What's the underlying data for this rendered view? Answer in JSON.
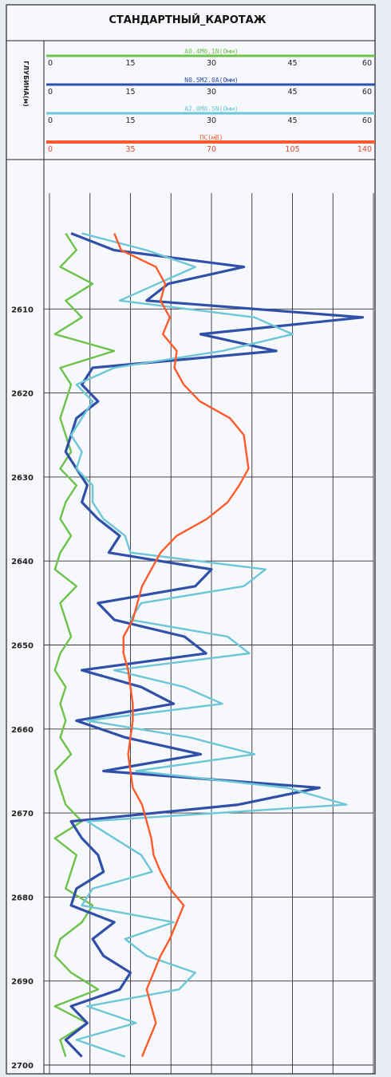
{
  "chart_data": {
    "type": "line",
    "title": "СТАНДАРТНЫЙ_КАРОТАЖ",
    "ylabel": "ГЛУБИНА(м)",
    "y_axis": {
      "ticks": [
        2610,
        2620,
        2630,
        2640,
        2650,
        2660,
        2670,
        2680,
        2690,
        2700
      ],
      "range": [
        2600,
        2700
      ],
      "reversed": true
    },
    "tracks": [
      {
        "name": "A0.4M0.1N(Омм)",
        "color": "#6cc24a",
        "ticks": [
          "0",
          "15",
          "30",
          "45",
          "60"
        ],
        "range": [
          0,
          60
        ]
      },
      {
        "name": "N0.5M2.0A(Омм)",
        "color": "#2f4fa8",
        "ticks": [
          "0",
          "15",
          "30",
          "45",
          "60"
        ],
        "range": [
          0,
          60
        ]
      },
      {
        "name": "A2.0M0.5N(Омм)",
        "color": "#6cc6d8",
        "ticks": [
          "0",
          "15",
          "30",
          "45",
          "60"
        ],
        "range": [
          0,
          60
        ]
      },
      {
        "name": "ПС(мВ)",
        "color": "#ff5a2c",
        "ticks": [
          "0",
          "35",
          "70",
          "105",
          "140"
        ],
        "range": [
          0,
          140
        ]
      }
    ],
    "series": [
      {
        "name": "A0.4M0.1N(Омм)",
        "color": "#6cc24a",
        "depth": [
          2601,
          2603,
          2605,
          2607,
          2609,
          2611,
          2613,
          2615,
          2617,
          2619,
          2621,
          2623,
          2625,
          2627,
          2629,
          2631,
          2633,
          2635,
          2637,
          2639,
          2641,
          2643,
          2645,
          2647,
          2649,
          2651,
          2653,
          2655,
          2657,
          2659,
          2661,
          2663,
          2665,
          2667,
          2669,
          2671,
          2673,
          2675,
          2677,
          2679,
          2681,
          2683,
          2685,
          2687,
          2689,
          2691,
          2693,
          2695,
          2697,
          2699
        ],
        "values": [
          3,
          5,
          2,
          8,
          3,
          6,
          1,
          12,
          2,
          4,
          3,
          2,
          3,
          4,
          2,
          5,
          3,
          2,
          4,
          2,
          1,
          5,
          2,
          3,
          4,
          2,
          1,
          3,
          2,
          3,
          2,
          4,
          1,
          2,
          3,
          6,
          1,
          5,
          4,
          3,
          8,
          6,
          2,
          1,
          4,
          9,
          1,
          7,
          2,
          3
        ]
      },
      {
        "name": "N0.5M2.0A(Омм)",
        "color": "#2f4fa8",
        "depth": [
          2601,
          2603,
          2605,
          2607,
          2609,
          2611,
          2613,
          2615,
          2617,
          2619,
          2621,
          2623,
          2625,
          2627,
          2629,
          2631,
          2633,
          2635,
          2637,
          2639,
          2641,
          2643,
          2645,
          2647,
          2649,
          2651,
          2653,
          2655,
          2657,
          2659,
          2661,
          2663,
          2665,
          2667,
          2669,
          2671,
          2673,
          2675,
          2677,
          2679,
          2681,
          2683,
          2685,
          2687,
          2689,
          2691,
          2693,
          2695,
          2697,
          2699
        ],
        "values": [
          4,
          12,
          36,
          22,
          18,
          58,
          28,
          42,
          8,
          6,
          9,
          5,
          4,
          3,
          5,
          7,
          6,
          9,
          13,
          11,
          30,
          27,
          9,
          12,
          25,
          29,
          6,
          17,
          23,
          5,
          14,
          28,
          10,
          50,
          35,
          4,
          6,
          9,
          10,
          5,
          4,
          12,
          8,
          10,
          15,
          13,
          4,
          7,
          3,
          6
        ]
      },
      {
        "name": "A2.0M0.5N(Омм)",
        "color": "#6cc6d8",
        "depth": [
          2601,
          2603,
          2605,
          2607,
          2609,
          2611,
          2613,
          2615,
          2617,
          2619,
          2621,
          2623,
          2625,
          2627,
          2629,
          2631,
          2633,
          2635,
          2637,
          2639,
          2641,
          2643,
          2645,
          2647,
          2649,
          2651,
          2653,
          2655,
          2657,
          2659,
          2661,
          2663,
          2665,
          2667,
          2669,
          2671,
          2673,
          2675,
          2677,
          2679,
          2681,
          2683,
          2685,
          2687,
          2689,
          2691,
          2693,
          2695,
          2697,
          2699
        ],
        "values": [
          6,
          18,
          27,
          20,
          13,
          38,
          45,
          32,
          12,
          5,
          8,
          6,
          4,
          6,
          5,
          8,
          8,
          10,
          14,
          15,
          40,
          36,
          17,
          15,
          33,
          37,
          12,
          25,
          32,
          7,
          26,
          38,
          16,
          44,
          55,
          7,
          12,
          17,
          19,
          8,
          6,
          23,
          14,
          18,
          27,
          24,
          7,
          16,
          5,
          14
        ]
      },
      {
        "name": "ПС(мВ)",
        "color": "#ff5a2c",
        "depth": [
          2601,
          2603,
          2605,
          2607,
          2609,
          2611,
          2613,
          2615,
          2617,
          2619,
          2621,
          2623,
          2625,
          2627,
          2629,
          2631,
          2633,
          2635,
          2637,
          2639,
          2641,
          2643,
          2645,
          2647,
          2649,
          2651,
          2653,
          2655,
          2657,
          2659,
          2661,
          2663,
          2665,
          2667,
          2669,
          2671,
          2673,
          2675,
          2677,
          2679,
          2681,
          2683,
          2685,
          2687,
          2689,
          2691,
          2693,
          2695,
          2697,
          2699
        ],
        "values": [
          28,
          31,
          46,
          50,
          48,
          52,
          49,
          55,
          54,
          58,
          65,
          78,
          84,
          85,
          86,
          82,
          77,
          68,
          55,
          48,
          44,
          40,
          38,
          36,
          32,
          32,
          34,
          35,
          36,
          36,
          35,
          34,
          35,
          36,
          40,
          42,
          44,
          45,
          48,
          52,
          58,
          55,
          52,
          48,
          45,
          42,
          44,
          46,
          43,
          40
        ]
      }
    ]
  }
}
